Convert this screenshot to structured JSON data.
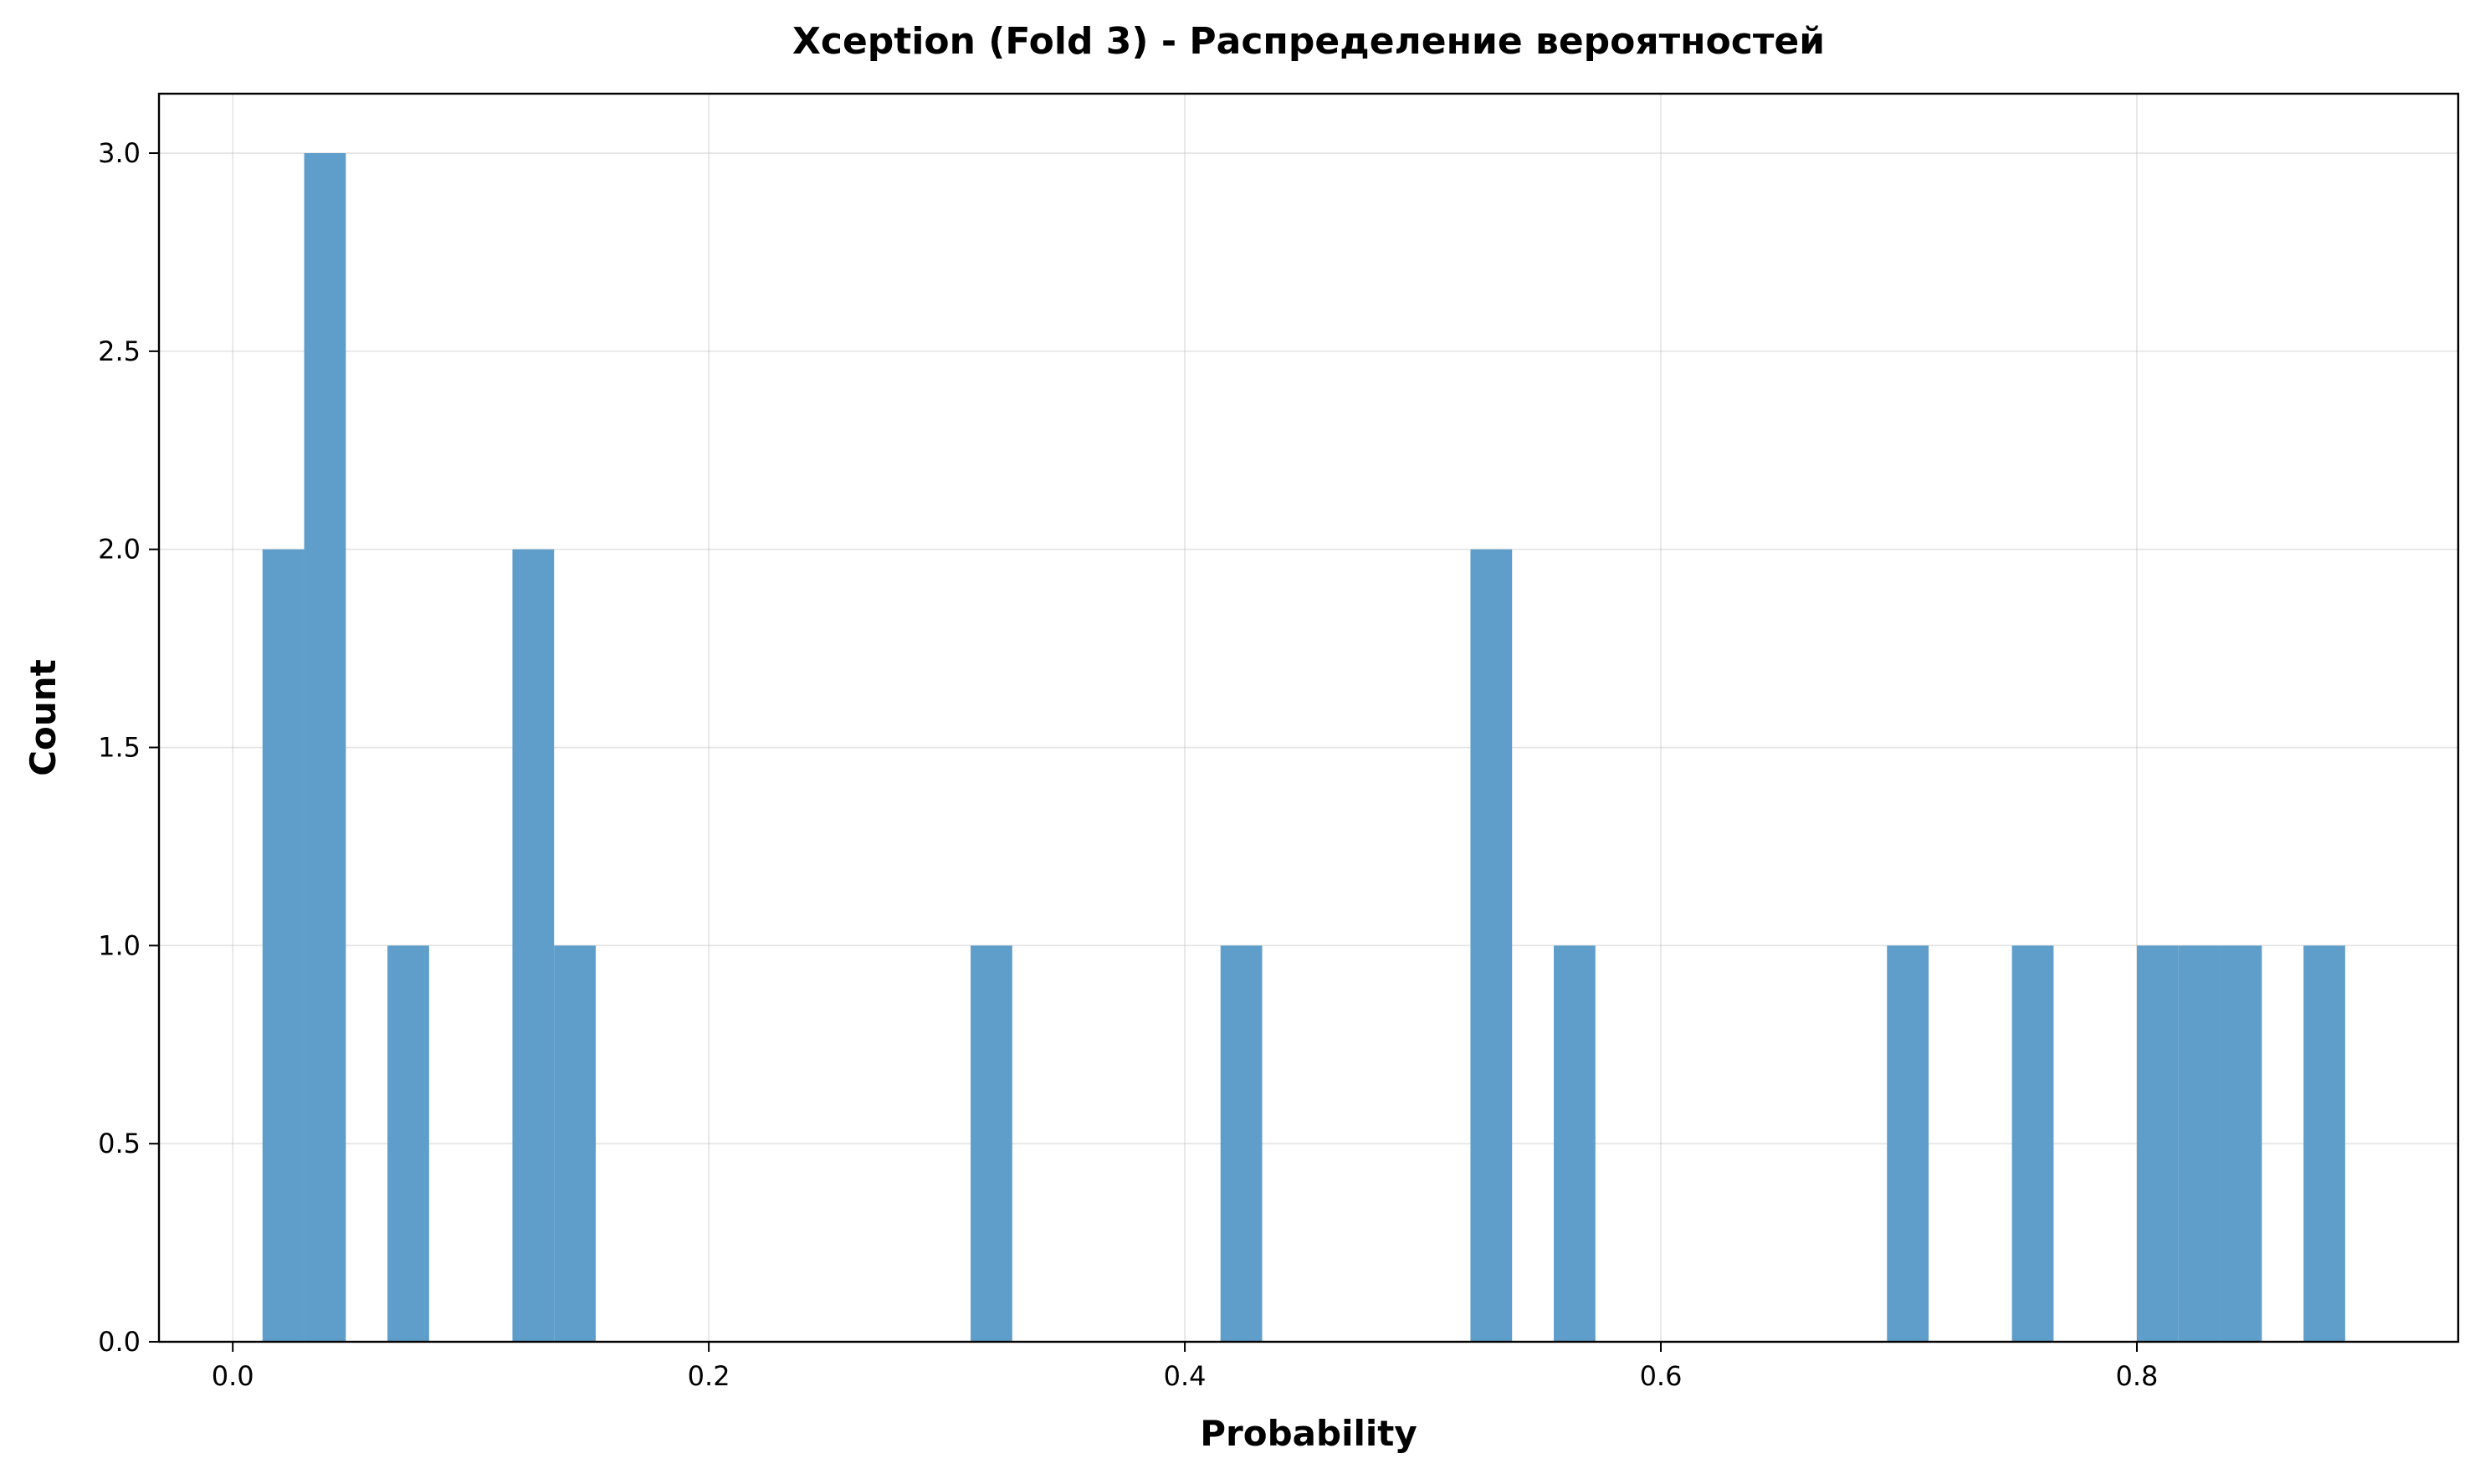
{
  "chart_data": {
    "type": "bar",
    "title": "Xception (Fold 3) - Распределение вероятностей",
    "xlabel": "Probability",
    "ylabel": "Count",
    "xlim": [
      -0.031,
      0.935
    ],
    "ylim": [
      0,
      3.15
    ],
    "grid": true,
    "bin_width": 0.0175,
    "bars": [
      {
        "x_start": 0.0125,
        "count": 2
      },
      {
        "x_start": 0.03,
        "count": 3
      },
      {
        "x_start": 0.065,
        "count": 1
      },
      {
        "x_start": 0.1175,
        "count": 2
      },
      {
        "x_start": 0.135,
        "count": 1
      },
      {
        "x_start": 0.31,
        "count": 1
      },
      {
        "x_start": 0.415,
        "count": 1
      },
      {
        "x_start": 0.52,
        "count": 2
      },
      {
        "x_start": 0.555,
        "count": 1
      },
      {
        "x_start": 0.695,
        "count": 1
      },
      {
        "x_start": 0.7475,
        "count": 1
      },
      {
        "x_start": 0.8,
        "count": 1
      },
      {
        "x_start": 0.8175,
        "count": 1
      },
      {
        "x_start": 0.835,
        "count": 1
      },
      {
        "x_start": 0.87,
        "count": 1
      }
    ],
    "x_ticks": [
      0.0,
      0.2,
      0.4,
      0.6,
      0.8
    ],
    "x_tick_labels": [
      "0.0",
      "0.2",
      "0.4",
      "0.6",
      "0.8"
    ],
    "y_ticks": [
      0.0,
      0.5,
      1.0,
      1.5,
      2.0,
      2.5,
      3.0
    ],
    "y_tick_labels": [
      "0.0",
      "0.5",
      "1.0",
      "1.5",
      "2.0",
      "2.5",
      "3.0"
    ],
    "colors": {
      "bar": "#5f9ecb",
      "axis": "#000000",
      "grid": "#b0b0b0"
    }
  }
}
